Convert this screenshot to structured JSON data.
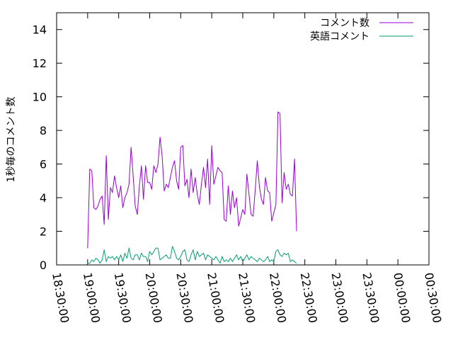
{
  "chart_data": {
    "type": "line",
    "ylabel": "1秒毎のコメント数",
    "xlabel": "",
    "ylim": [
      0,
      15
    ],
    "yticks": [
      0,
      2,
      4,
      6,
      8,
      10,
      12,
      14
    ],
    "xlim": [
      "18:30:00",
      "00:30:00"
    ],
    "xticks": [
      "18:30:00",
      "19:00:00",
      "19:30:00",
      "20:00:00",
      "20:30:00",
      "21:00:00",
      "21:30:00",
      "22:00:00",
      "22:30:00",
      "23:00:00",
      "23:30:00",
      "00:00:00",
      "00:30:00"
    ],
    "grid": false,
    "legend_position": "top-right",
    "series": [
      {
        "name": "コメント数",
        "color": "#9400d3",
        "points": [
          [
            "19:00:00",
            1.0
          ],
          [
            "19:02:00",
            5.7
          ],
          [
            "19:04:00",
            5.6
          ],
          [
            "19:06:00",
            3.4
          ],
          [
            "19:08:00",
            3.3
          ],
          [
            "19:10:00",
            3.5
          ],
          [
            "19:12:00",
            3.9
          ],
          [
            "19:14:00",
            4.1
          ],
          [
            "19:16:00",
            2.4
          ],
          [
            "19:18:00",
            6.5
          ],
          [
            "19:20:00",
            2.7
          ],
          [
            "19:22:00",
            4.6
          ],
          [
            "19:24:00",
            4.3
          ],
          [
            "19:26:00",
            5.3
          ],
          [
            "19:28:00",
            4.6
          ],
          [
            "19:30:00",
            4.0
          ],
          [
            "19:32:00",
            4.7
          ],
          [
            "19:34:00",
            3.4
          ],
          [
            "19:36:00",
            4.0
          ],
          [
            "19:38:00",
            4.3
          ],
          [
            "19:40:00",
            4.8
          ],
          [
            "19:42:00",
            7.0
          ],
          [
            "19:44:00",
            5.3
          ],
          [
            "19:46:00",
            3.5
          ],
          [
            "19:48:00",
            3.0
          ],
          [
            "19:50:00",
            4.7
          ],
          [
            "19:52:00",
            5.9
          ],
          [
            "19:54:00",
            3.9
          ],
          [
            "19:56:00",
            5.9
          ],
          [
            "19:58:00",
            4.9
          ],
          [
            "20:00:00",
            4.9
          ],
          [
            "20:02:00",
            4.5
          ],
          [
            "20:04:00",
            5.9
          ],
          [
            "20:06:00",
            5.5
          ],
          [
            "20:08:00",
            6.0
          ],
          [
            "20:10:00",
            7.6
          ],
          [
            "20:12:00",
            6.5
          ],
          [
            "20:14:00",
            4.4
          ],
          [
            "20:16:00",
            4.8
          ],
          [
            "20:18:00",
            4.6
          ],
          [
            "20:20:00",
            5.2
          ],
          [
            "20:22:00",
            5.8
          ],
          [
            "20:24:00",
            6.2
          ],
          [
            "20:26:00",
            5.0
          ],
          [
            "20:28:00",
            4.5
          ],
          [
            "20:30:00",
            7.0
          ],
          [
            "20:32:00",
            7.1
          ],
          [
            "20:34:00",
            4.7
          ],
          [
            "20:36:00",
            5.1
          ],
          [
            "20:38:00",
            4.0
          ],
          [
            "20:40:00",
            5.7
          ],
          [
            "20:42:00",
            4.3
          ],
          [
            "20:44:00",
            5.2
          ],
          [
            "20:46:00",
            4.2
          ],
          [
            "20:48:00",
            3.6
          ],
          [
            "20:50:00",
            4.8
          ],
          [
            "20:52:00",
            5.8
          ],
          [
            "20:54:00",
            4.6
          ],
          [
            "20:56:00",
            6.3
          ],
          [
            "20:58:00",
            3.6
          ],
          [
            "21:00:00",
            7.1
          ],
          [
            "21:02:00",
            4.8
          ],
          [
            "21:04:00",
            5.3
          ],
          [
            "21:06:00",
            5.8
          ],
          [
            "21:08:00",
            5.6
          ],
          [
            "21:10:00",
            5.5
          ],
          [
            "21:12:00",
            2.7
          ],
          [
            "21:14:00",
            2.6
          ],
          [
            "21:16:00",
            4.7
          ],
          [
            "21:18:00",
            3.0
          ],
          [
            "21:20:00",
            4.4
          ],
          [
            "21:22:00",
            3.4
          ],
          [
            "21:24:00",
            4.0
          ],
          [
            "21:26:00",
            2.3
          ],
          [
            "21:28:00",
            2.8
          ],
          [
            "21:30:00",
            3.3
          ],
          [
            "21:32:00",
            3.0
          ],
          [
            "21:34:00",
            5.4
          ],
          [
            "21:36:00",
            4.2
          ],
          [
            "21:38:00",
            3.0
          ],
          [
            "21:40:00",
            2.9
          ],
          [
            "21:42:00",
            4.4
          ],
          [
            "21:44:00",
            6.2
          ],
          [
            "21:46:00",
            4.7
          ],
          [
            "21:48:00",
            3.9
          ],
          [
            "21:50:00",
            3.6
          ],
          [
            "21:52:00",
            5.2
          ],
          [
            "21:54:00",
            4.4
          ],
          [
            "21:56:00",
            4.3
          ],
          [
            "21:58:00",
            2.6
          ],
          [
            "22:00:00",
            3.1
          ],
          [
            "22:02:00",
            3.6
          ],
          [
            "22:04:00",
            9.1
          ],
          [
            "22:06:00",
            9.0
          ],
          [
            "22:08:00",
            3.7
          ],
          [
            "22:10:00",
            5.5
          ],
          [
            "22:12:00",
            4.5
          ],
          [
            "22:14:00",
            4.8
          ],
          [
            "22:16:00",
            4.2
          ],
          [
            "22:18:00",
            4.1
          ],
          [
            "22:20:00",
            6.3
          ],
          [
            "22:22:00",
            2.0
          ]
        ]
      },
      {
        "name": "英語コメント",
        "color": "#009e73",
        "points": [
          [
            "19:00:00",
            0.1
          ],
          [
            "19:02:00",
            0.1
          ],
          [
            "19:04:00",
            0.3
          ],
          [
            "19:06:00",
            0.2
          ],
          [
            "19:08:00",
            0.4
          ],
          [
            "19:10:00",
            0.3
          ],
          [
            "19:12:00",
            0.1
          ],
          [
            "19:14:00",
            0.3
          ],
          [
            "19:16:00",
            0.9
          ],
          [
            "19:18:00",
            0.2
          ],
          [
            "19:20:00",
            0.5
          ],
          [
            "19:22:00",
            0.4
          ],
          [
            "19:24:00",
            0.5
          ],
          [
            "19:26:00",
            0.3
          ],
          [
            "19:28:00",
            0.5
          ],
          [
            "19:30:00",
            0.3
          ],
          [
            "19:32:00",
            0.6
          ],
          [
            "19:34:00",
            0.2
          ],
          [
            "19:36:00",
            0.7
          ],
          [
            "19:38:00",
            0.4
          ],
          [
            "19:40:00",
            1.0
          ],
          [
            "19:42:00",
            0.4
          ],
          [
            "19:44:00",
            0.3
          ],
          [
            "19:46:00",
            0.6
          ],
          [
            "19:48:00",
            0.6
          ],
          [
            "19:50:00",
            0.3
          ],
          [
            "19:52:00",
            0.7
          ],
          [
            "19:54:00",
            0.5
          ],
          [
            "19:56:00",
            0.5
          ],
          [
            "19:58:00",
            0.2
          ],
          [
            "20:00:00",
            0.8
          ],
          [
            "20:02:00",
            0.6
          ],
          [
            "20:04:00",
            0.8
          ],
          [
            "20:06:00",
            1.0
          ],
          [
            "20:08:00",
            1.0
          ],
          [
            "20:10:00",
            0.3
          ],
          [
            "20:12:00",
            0.4
          ],
          [
            "20:14:00",
            0.5
          ],
          [
            "20:16:00",
            0.6
          ],
          [
            "20:18:00",
            0.4
          ],
          [
            "20:20:00",
            0.4
          ],
          [
            "20:22:00",
            1.1
          ],
          [
            "20:24:00",
            0.8
          ],
          [
            "20:26:00",
            0.4
          ],
          [
            "20:28:00",
            0.3
          ],
          [
            "20:30:00",
            0.5
          ],
          [
            "20:32:00",
            0.8
          ],
          [
            "20:34:00",
            0.9
          ],
          [
            "20:36:00",
            0.3
          ],
          [
            "20:38:00",
            0.2
          ],
          [
            "20:40:00",
            0.6
          ],
          [
            "20:42:00",
            0.9
          ],
          [
            "20:44:00",
            0.3
          ],
          [
            "20:46:00",
            0.8
          ],
          [
            "20:48:00",
            0.5
          ],
          [
            "20:50:00",
            0.6
          ],
          [
            "20:52:00",
            0.7
          ],
          [
            "20:54:00",
            0.3
          ],
          [
            "20:56:00",
            0.6
          ],
          [
            "20:58:00",
            0.5
          ],
          [
            "21:00:00",
            0.4
          ],
          [
            "21:02:00",
            0.3
          ],
          [
            "21:04:00",
            0.5
          ],
          [
            "21:06:00",
            0.3
          ],
          [
            "21:08:00",
            0.1
          ],
          [
            "21:10:00",
            0.5
          ],
          [
            "21:12:00",
            0.2
          ],
          [
            "21:14:00",
            0.3
          ],
          [
            "21:16:00",
            0.2
          ],
          [
            "21:18:00",
            0.4
          ],
          [
            "21:20:00",
            0.2
          ],
          [
            "21:22:00",
            0.4
          ],
          [
            "21:24:00",
            0.6
          ],
          [
            "21:26:00",
            0.3
          ],
          [
            "21:28:00",
            0.5
          ],
          [
            "21:30:00",
            0.2
          ],
          [
            "21:32:00",
            0.4
          ],
          [
            "21:34:00",
            0.6
          ],
          [
            "21:36:00",
            0.3
          ],
          [
            "21:38:00",
            0.5
          ],
          [
            "21:40:00",
            0.4
          ],
          [
            "21:42:00",
            0.3
          ],
          [
            "21:44:00",
            0.2
          ],
          [
            "21:46:00",
            0.4
          ],
          [
            "21:48:00",
            0.3
          ],
          [
            "21:50:00",
            0.2
          ],
          [
            "21:52:00",
            0.3
          ],
          [
            "21:54:00",
            0.5
          ],
          [
            "21:56:00",
            0.2
          ],
          [
            "21:58:00",
            0.3
          ],
          [
            "22:00:00",
            0.2
          ],
          [
            "22:02:00",
            0.8
          ],
          [
            "22:04:00",
            0.9
          ],
          [
            "22:06:00",
            0.6
          ],
          [
            "22:08:00",
            0.5
          ],
          [
            "22:10:00",
            0.7
          ],
          [
            "22:12:00",
            0.6
          ],
          [
            "22:14:00",
            0.7
          ],
          [
            "22:16:00",
            0.2
          ],
          [
            "22:18:00",
            0.3
          ],
          [
            "22:20:00",
            0.2
          ],
          [
            "22:22:00",
            0.1
          ]
        ]
      }
    ]
  }
}
